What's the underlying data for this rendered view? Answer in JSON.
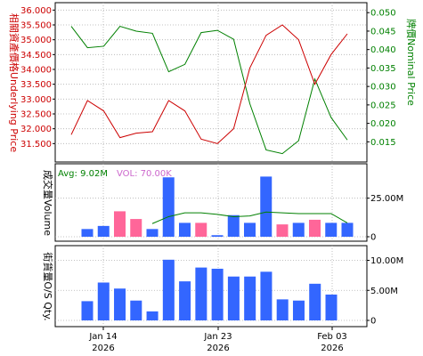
{
  "colors": {
    "underlying": "#cc0000",
    "nominal": "#008000",
    "volume_up": "#3366ff",
    "volume_down": "#ff6699",
    "vol_avg_line": "#008000",
    "os_bar": "#3366ff",
    "frame": "#000000",
    "grid": "#b0b0b0"
  },
  "chart_data": [
    {
      "type": "line",
      "panel": "price",
      "y_left_label": "相關資產價格Underlying Price",
      "y_right_label": "牌價Nominal Price",
      "y_left_ticks": [
        "31.500",
        "32.000",
        "32.500",
        "33.000",
        "33.500",
        "34.000",
        "34.500",
        "35.000",
        "35.500",
        "36.000"
      ],
      "y_right_ticks": [
        "0.015",
        "0.020",
        "0.025",
        "0.030",
        "0.035",
        "0.040",
        "0.045",
        "0.050"
      ],
      "ylim_left": [
        31.0,
        36.1
      ],
      "ylim_right": [
        0.0105,
        0.0515
      ],
      "grid": true,
      "series": [
        {
          "axis": "left",
          "color": "#cc0000",
          "values": [
            31.8,
            32.95,
            32.6,
            31.7,
            31.85,
            31.9,
            32.95,
            32.6,
            31.65,
            31.5,
            32.0,
            34.05,
            35.15,
            35.5,
            35.0,
            33.5,
            34.5,
            35.2
          ]
        },
        {
          "axis": "right",
          "color": "#008000",
          "values": [
            0.0463,
            0.0405,
            0.0409,
            0.0463,
            0.045,
            0.0444,
            0.034,
            0.036,
            0.0446,
            0.0452,
            0.0428,
            0.0253,
            0.0128,
            0.0118,
            0.0153,
            0.032,
            0.0216,
            0.0155
          ]
        }
      ]
    },
    {
      "type": "bar",
      "panel": "volume",
      "y_left_label": "成交量Volume",
      "y_right_ticks": [
        "0",
        "25.00M"
      ],
      "ylim": [
        0,
        45
      ],
      "grid": true,
      "avg_label": "Avg: 9.02M",
      "vol_label": "VOL: 70.00K",
      "values": [
        5.0,
        7.0,
        16.5,
        11.5,
        5.0,
        38.5,
        9.0,
        9.0,
        1.0,
        14.0,
        9.0,
        39.0,
        8.0,
        9.0,
        11.0,
        9.0,
        9.0
      ],
      "colors": [
        "blue",
        "blue",
        "pink",
        "pink",
        "blue",
        "blue",
        "blue",
        "pink",
        "blue",
        "blue",
        "blue",
        "blue",
        "pink",
        "blue",
        "pink",
        "blue",
        "blue"
      ],
      "avg_values": [
        null,
        null,
        null,
        null,
        8.5,
        13.0,
        15.5,
        15.5,
        14.5,
        13.0,
        13.5,
        16.0,
        15.5,
        15.0,
        15.0,
        15.0,
        9.0
      ]
    },
    {
      "type": "bar",
      "panel": "outstanding",
      "y_left_label": "街貨量O/S Qty.",
      "y_right_ticks": [
        "0",
        "5.00M",
        "10.00M"
      ],
      "ylim": [
        0,
        12
      ],
      "grid": true,
      "values": [
        3.2,
        6.3,
        5.3,
        3.3,
        1.5,
        10.1,
        6.5,
        8.8,
        8.6,
        7.3,
        7.3,
        8.1,
        3.5,
        3.3,
        6.1,
        4.3
      ],
      "x_tick_labels": [
        [
          "Jan 14",
          "2026"
        ],
        [
          "Jan 23",
          "2026"
        ],
        [
          "Feb 03",
          "2026"
        ]
      ]
    }
  ]
}
